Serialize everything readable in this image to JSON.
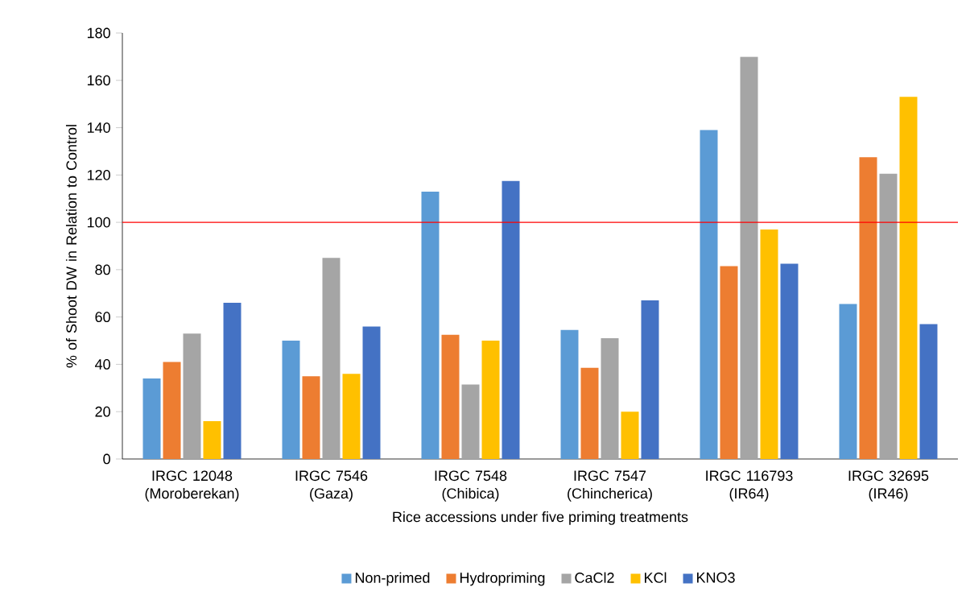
{
  "chart_data": {
    "type": "bar",
    "xlabel": "Rice accessions under five priming treatments",
    "ylabel": "% of Shoot DW in Relation to Control",
    "categories": [
      "IRGC 12048 (Moroberekan)",
      "IRGC 7546 (Gaza)",
      "IRGC 7548 (Chibica)",
      "IRGC 7547 (Chincherica)",
      "IRGC 116793 (IR64)",
      "IRGC 32695 (IR46)"
    ],
    "series": [
      {
        "name": "Non-primed",
        "color": "#5b9bd5",
        "values": [
          34,
          50,
          113,
          54.5,
          139,
          65.5
        ]
      },
      {
        "name": "Hydropriming",
        "color": "#ed7d31",
        "values": [
          41,
          35,
          52.5,
          38.5,
          81.5,
          127.5
        ]
      },
      {
        "name": "CaCl2",
        "color": "#a5a5a5",
        "values": [
          53,
          85,
          31.5,
          51,
          170,
          120.5
        ]
      },
      {
        "name": "KCl",
        "color": "#ffc000",
        "values": [
          16,
          36,
          50,
          20,
          97,
          153
        ]
      },
      {
        "name": "KNO3",
        "color": "#4472c4",
        "values": [
          66,
          56,
          117.5,
          67,
          82.5,
          57
        ]
      }
    ],
    "ylim": [
      0,
      180
    ],
    "yticks": [
      0,
      20,
      40,
      60,
      80,
      100,
      120,
      140,
      160,
      180
    ],
    "ref_lines": [
      {
        "axis": "y",
        "value": 100,
        "color": "#ff0000"
      }
    ],
    "grid": false,
    "legend": "bottom"
  }
}
